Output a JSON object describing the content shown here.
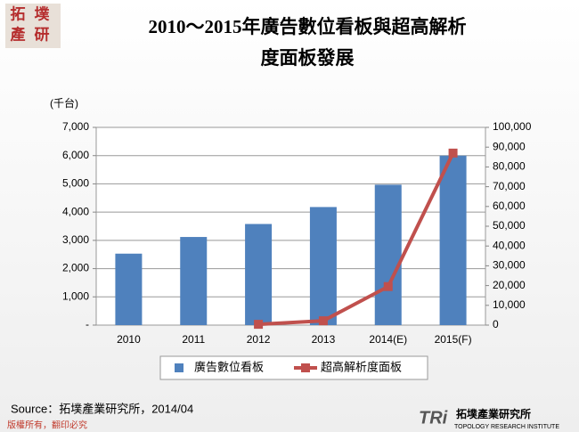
{
  "header": {
    "logo": [
      "拓",
      "墣",
      "產",
      "研"
    ]
  },
  "chart_data": {
    "type": "bar-line",
    "title": [
      "2010～2015年廣告數位看板與超高解析",
      "度面板發展"
    ],
    "y_label": "(千台)",
    "categories": [
      "2010",
      "2011",
      "2012",
      "2013",
      "2014(E)",
      "2015(F)"
    ],
    "series": [
      {
        "name": "廣告數位看板",
        "color": "#4f81bd",
        "kind": "bar",
        "values": [
          2530,
          3120,
          3580,
          4180,
          4970,
          6000
        ]
      },
      {
        "name": "超高解析度面板",
        "color": "#c0504d",
        "kind": "line",
        "axis": "y2",
        "values": [
          null,
          null,
          400,
          2200,
          19500,
          87000
        ]
      }
    ],
    "ylim": [
      0,
      7000
    ],
    "yticks": [
      {
        "value": 0,
        "label": "-"
      },
      {
        "value": 1000,
        "label": "1,000"
      },
      {
        "value": 2000,
        "label": "2,000"
      },
      {
        "value": 3000,
        "label": "3,000"
      },
      {
        "value": 4000,
        "label": "4,000"
      },
      {
        "value": 5000,
        "label": "5,000"
      },
      {
        "value": 6000,
        "label": "6,000"
      },
      {
        "value": 7000,
        "label": "7,000"
      }
    ],
    "y2lim": [
      0,
      100000
    ],
    "y2ticks": [
      0,
      {
        "value": 10000,
        "label": "10,000"
      },
      {
        "value": 20000,
        "label": "20,000"
      },
      {
        "value": 30000,
        "label": "30,000"
      },
      {
        "value": 40000,
        "label": "40,000"
      },
      {
        "value": 50000,
        "label": "50,000"
      },
      {
        "value": 60000,
        "label": "60,000"
      },
      {
        "value": 70000,
        "label": "70,000"
      },
      {
        "value": 80000,
        "label": "80,000"
      },
      {
        "value": 90000,
        "label": "90,000"
      },
      {
        "value": 100000,
        "label": "100,000"
      }
    ],
    "grid": true,
    "legend": "bottom",
    "source": "Source：拓墣產業研究所，2014/04"
  },
  "footer": {
    "copyright": "版權所有，翻印必究",
    "brand": "拓墣產業研究所",
    "brand_en": "TOPOLOGY RESEARCH INSTITUTE",
    "brand_mark": "TRi"
  }
}
